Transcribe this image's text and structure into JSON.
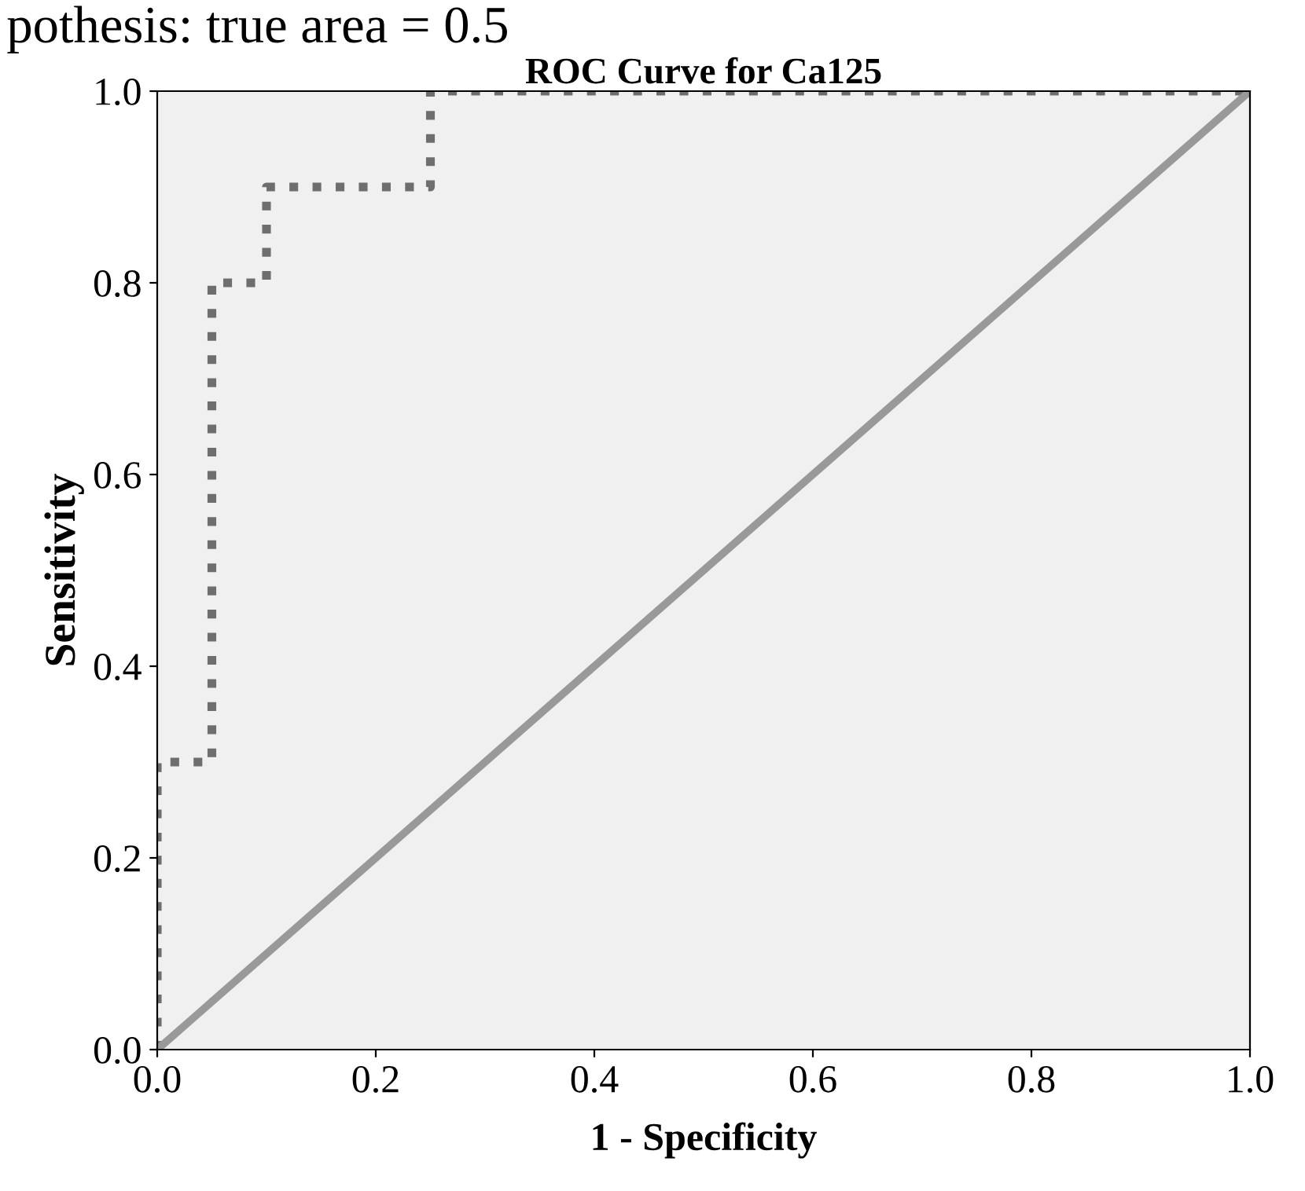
{
  "chart_data": {
    "type": "line",
    "title": "ROC Curve for Ca125",
    "xlabel": "1 - Specificity",
    "ylabel": "Sensitivity",
    "annotations": [
      "pothesis: true area = 0.5"
    ],
    "series": [
      {
        "type": "step",
        "color": "#6e6e6e",
        "line_style": "dotted",
        "x": [
          0.0,
          0.0,
          0.05,
          0.05,
          0.1,
          0.1,
          0.25,
          0.25,
          1.0
        ],
        "values": [
          0.0,
          0.3,
          0.3,
          0.8,
          0.8,
          0.9,
          0.9,
          1.0,
          1.0
        ]
      },
      {
        "color": "#999999",
        "line_style": "solid",
        "x": [
          0.0,
          1.0
        ],
        "values": [
          0.0,
          1.0
        ]
      }
    ],
    "xlim": [
      0,
      1
    ],
    "ylim": [
      0,
      1
    ],
    "xticks": [
      {
        "value": 0,
        "label": "0.0"
      },
      0.2,
      0.4,
      0.6,
      0.8,
      {
        "value": 1,
        "label": "1.0"
      }
    ],
    "yticks": [
      {
        "value": 0,
        "label": "0.0"
      },
      0.2,
      0.4,
      0.6,
      0.8,
      {
        "value": 1,
        "label": "1.0"
      }
    ],
    "grid": false,
    "legend": false,
    "marker": "none"
  }
}
